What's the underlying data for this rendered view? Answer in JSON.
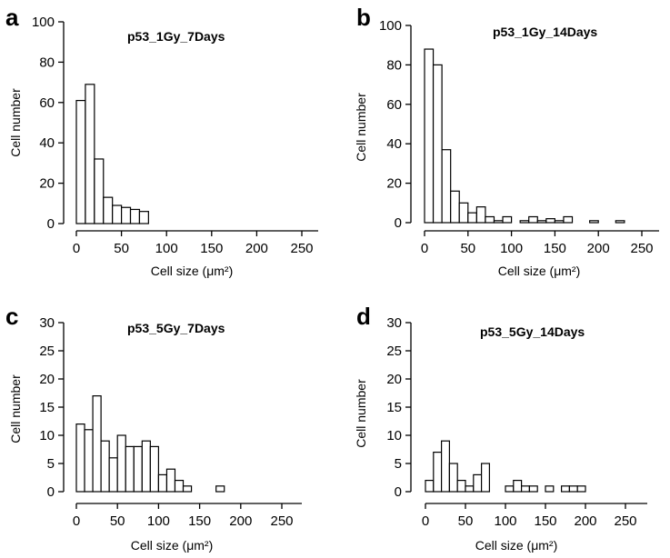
{
  "chart_data": [
    {
      "panel": "a",
      "type": "bar",
      "title": "p53_1Gy_7Days",
      "xlabel": "Cell size (μm²)",
      "ylabel": "Cell number",
      "bin_width": 10,
      "x": [
        5,
        15,
        25,
        35,
        45,
        55,
        65,
        75
      ],
      "values": [
        61,
        69,
        32,
        13,
        9,
        8,
        7,
        6
      ],
      "xlim": [
        0,
        260
      ],
      "ylim": [
        0,
        100
      ],
      "xticks": [
        0,
        50,
        100,
        150,
        200,
        250
      ],
      "yticks": [
        0,
        20,
        40,
        60,
        80,
        100
      ],
      "grid": false
    },
    {
      "panel": "b",
      "type": "bar",
      "title": "p53_1Gy_14Days",
      "xlabel": "Cell size (μm²)",
      "ylabel": "Cell number",
      "bin_width": 10,
      "x": [
        5,
        15,
        25,
        35,
        45,
        55,
        65,
        75,
        85,
        95,
        105,
        115,
        125,
        135,
        145,
        155,
        165,
        175,
        185,
        195,
        205,
        215,
        225
      ],
      "values": [
        88,
        80,
        37,
        16,
        10,
        5,
        8,
        3,
        1,
        3,
        0,
        1,
        3,
        1,
        2,
        1,
        3,
        0,
        0,
        1,
        0,
        0,
        1
      ],
      "xlim": [
        0,
        260
      ],
      "ylim": [
        0,
        100
      ],
      "xticks": [
        0,
        50,
        100,
        150,
        200,
        250
      ],
      "yticks": [
        0,
        20,
        40,
        60,
        80,
        100
      ],
      "grid": false
    },
    {
      "panel": "c",
      "type": "bar",
      "title": "p53_5Gy_7Days",
      "xlabel": "Cell size (μm²)",
      "ylabel": "Cell number",
      "bin_width": 10,
      "x": [
        5,
        15,
        25,
        35,
        45,
        55,
        65,
        75,
        85,
        95,
        105,
        115,
        125,
        135,
        145,
        155,
        165,
        175
      ],
      "values": [
        12,
        11,
        17,
        9,
        6,
        10,
        8,
        8,
        9,
        8,
        3,
        4,
        2,
        1,
        0,
        0,
        0,
        1
      ],
      "xlim": [
        0,
        260
      ],
      "ylim": [
        0,
        30
      ],
      "xticks": [
        0,
        50,
        100,
        150,
        200,
        250
      ],
      "yticks": [
        0,
        5,
        10,
        15,
        20,
        25,
        30
      ],
      "grid": false
    },
    {
      "panel": "d",
      "type": "bar",
      "title": "p53_5Gy_14Days",
      "xlabel": "Cell size (μm²)",
      "ylabel": "Cell number",
      "bin_width": 10,
      "x": [
        5,
        15,
        25,
        35,
        45,
        55,
        65,
        75,
        85,
        95,
        105,
        115,
        125,
        135,
        145,
        155,
        165,
        175,
        185,
        195
      ],
      "values": [
        2,
        7,
        9,
        5,
        2,
        1,
        3,
        5,
        0,
        0,
        1,
        2,
        1,
        1,
        0,
        1,
        0,
        1,
        1,
        1
      ],
      "xlim": [
        0,
        260
      ],
      "ylim": [
        0,
        30
      ],
      "xticks": [
        0,
        50,
        100,
        150,
        200,
        250
      ],
      "yticks": [
        0,
        5,
        10,
        15,
        20,
        25,
        30
      ],
      "grid": false
    }
  ]
}
